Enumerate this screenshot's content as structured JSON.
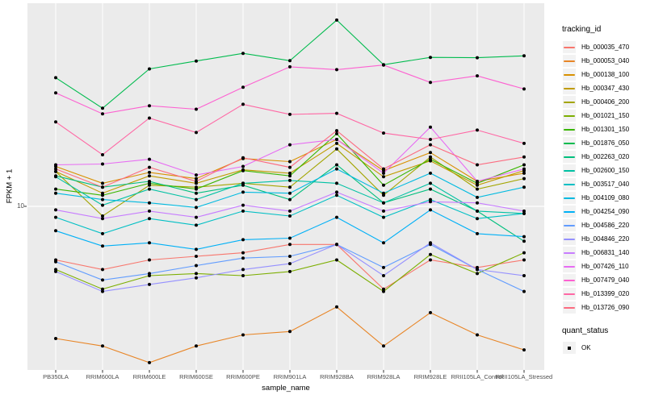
{
  "figure": {
    "panel_bg": "#EBEBEB",
    "grid_color": "#FFFFFF",
    "tick_color": "#333333",
    "tick_text_color": "#4d4d4d",
    "legend_key_bg": "#F2F2F2"
  },
  "chart_data": {
    "type": "line",
    "title": "",
    "xlabel": "sample_name",
    "ylabel": "FPKM + 1",
    "y_scale": "log10",
    "ylim": [
      2.44,
      57.6
    ],
    "grid": "on",
    "legend_position": "right",
    "y_ticks": [
      {
        "value": 10,
        "label": "10"
      }
    ],
    "x_categories": [
      "PB350LA",
      "RRIM600LA",
      "RRIM600LE",
      "RRIM600SE",
      "RRIM600PE",
      "RRIM901LA",
      "RRIM928BA",
      "RRIM928LA",
      "RRIM928LE",
      "RRII105LA_Control",
      "RRII105LA_Stressed"
    ],
    "point_color": "#000000",
    "series": [
      {
        "name": "Hb_000035_470",
        "color": "#F8766D",
        "values": [
          6.3,
          5.8,
          6.3,
          6.5,
          6.7,
          7.2,
          7.2,
          4.9,
          6.3,
          5.9,
          6.3
        ]
      },
      {
        "name": "Hb_000053_040",
        "color": "#E88526",
        "values": [
          3.2,
          3.0,
          2.6,
          3.0,
          3.3,
          3.4,
          4.2,
          3.0,
          4.0,
          3.3,
          2.9
        ]
      },
      {
        "name": "Hb_000138_100",
        "color": "#D89000",
        "values": [
          14.1,
          12.2,
          13.4,
          12.7,
          15.1,
          14.7,
          17.8,
          13.6,
          15.9,
          12.4,
          13.3
        ]
      },
      {
        "name": "Hb_000347_430",
        "color": "#C09B00",
        "values": [
          13.5,
          11.2,
          13.0,
          12.2,
          13.7,
          13.3,
          17.2,
          12.9,
          14.8,
          12.0,
          13.6
        ]
      },
      {
        "name": "Hb_000406_200",
        "color": "#A3A500",
        "values": [
          13.5,
          9.2,
          12.0,
          11.8,
          12.2,
          11.8,
          16.4,
          11.0,
          15.3,
          11.6,
          12.7
        ]
      },
      {
        "name": "Hb_001021_150",
        "color": "#7CAE00",
        "values": [
          5.8,
          4.9,
          5.5,
          5.6,
          5.5,
          5.7,
          6.3,
          4.8,
          6.6,
          5.6,
          6.7
        ]
      },
      {
        "name": "Hb_001301_150",
        "color": "#39B600",
        "values": [
          11.6,
          11.0,
          12.2,
          11.6,
          13.6,
          13.0,
          18.7,
          12.0,
          15.0,
          12.2,
          14.3
        ]
      },
      {
        "name": "Hb_001876_050",
        "color": "#00BB4E",
        "values": [
          30.3,
          23.3,
          32.7,
          35.0,
          37.4,
          35.1,
          49.8,
          33.9,
          36.1,
          36.0,
          36.6
        ]
      },
      {
        "name": "Hb_002263_020",
        "color": "#00BF7D",
        "values": [
          13.0,
          11.8,
          12.4,
          11.2,
          12.0,
          10.6,
          14.3,
          10.3,
          11.6,
          9.6,
          7.4
        ]
      },
      {
        "name": "Hb_002600_150",
        "color": "#00C1A3",
        "values": [
          12.9,
          10.1,
          11.6,
          10.6,
          12.2,
          12.5,
          12.2,
          10.3,
          12.2,
          9.6,
          9.4
        ]
      },
      {
        "name": "Hb_003517_040",
        "color": "#00BFC4",
        "values": [
          9.1,
          7.9,
          9.0,
          8.5,
          9.6,
          9.2,
          11.0,
          9.1,
          10.6,
          9.0,
          9.4
        ]
      },
      {
        "name": "Hb_004109_080",
        "color": "#00BAE0",
        "values": [
          11.2,
          10.6,
          10.3,
          9.9,
          11.3,
          11.2,
          13.8,
          11.2,
          13.3,
          10.8,
          11.8
        ]
      },
      {
        "name": "Hb_004254_090",
        "color": "#00B0F6",
        "values": [
          8.1,
          7.1,
          7.3,
          6.9,
          7.5,
          7.6,
          9.1,
          7.3,
          9.7,
          7.9,
          7.7
        ]
      },
      {
        "name": "Hb_004586_220",
        "color": "#619CFF",
        "values": [
          6.2,
          5.3,
          5.6,
          6.0,
          6.4,
          6.5,
          7.2,
          5.9,
          7.2,
          5.8,
          4.8
        ]
      },
      {
        "name": "Hb_004846_220",
        "color": "#9590FF",
        "values": [
          5.7,
          4.8,
          5.1,
          5.4,
          5.8,
          6.1,
          7.2,
          5.5,
          7.3,
          5.8,
          5.5
        ]
      },
      {
        "name": "Hb_006831_140",
        "color": "#C77CFF",
        "values": [
          9.7,
          9.0,
          9.6,
          9.1,
          10.1,
          9.6,
          11.3,
          9.6,
          10.4,
          10.3,
          9.6
        ]
      },
      {
        "name": "Hb_007426_110",
        "color": "#E76BF3",
        "values": [
          14.3,
          14.4,
          15.0,
          13.1,
          14.1,
          17.0,
          17.8,
          13.3,
          19.8,
          12.4,
          13.8
        ]
      },
      {
        "name": "Hb_007479_040",
        "color": "#FD61D1",
        "values": [
          26.6,
          22.2,
          23.8,
          23.1,
          27.9,
          33.3,
          32.5,
          33.8,
          29.1,
          30.8,
          27.5
        ]
      },
      {
        "name": "Hb_013399_020",
        "color": "#FF67A4",
        "values": [
          20.7,
          15.6,
          21.4,
          18.9,
          24.1,
          22.1,
          22.3,
          18.8,
          17.8,
          19.3,
          17.2
        ]
      },
      {
        "name": "Hb_013726_090",
        "color": "#FC6B80",
        "values": [
          13.8,
          11.8,
          14.0,
          12.4,
          15.2,
          14.0,
          19.2,
          13.8,
          17.0,
          14.3,
          15.3
        ]
      }
    ]
  },
  "legend": {
    "tracking_title": "tracking_id",
    "quant_title": "quant_status",
    "quant_items": [
      {
        "label": "OK"
      }
    ]
  }
}
